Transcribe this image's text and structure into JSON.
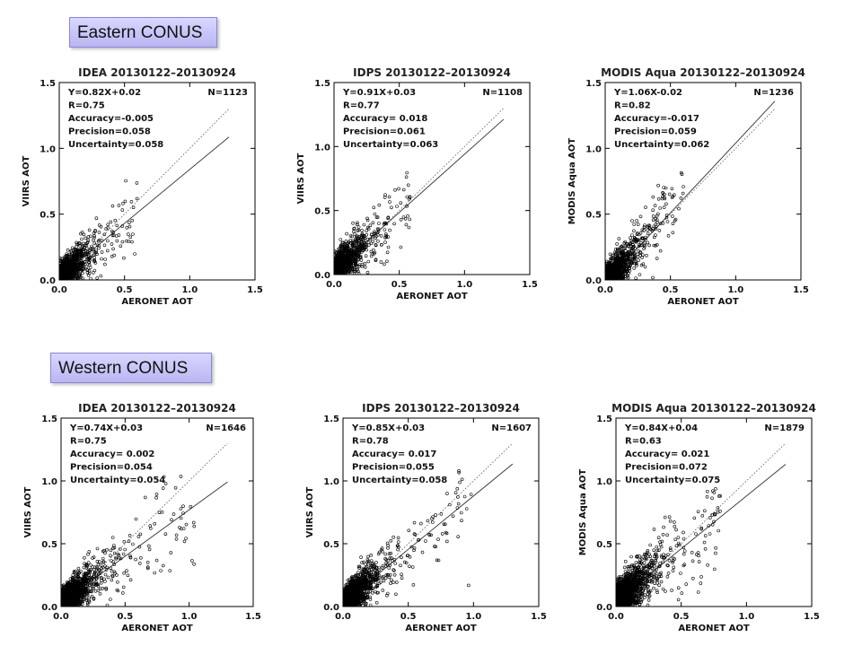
{
  "regions": {
    "east": "Eastern CONUS",
    "west": "Western CONUS"
  },
  "colors": {
    "points": "#000000",
    "axes": "#000000",
    "label_fill": "#c9c6f7",
    "label_border": "#8a86d6"
  },
  "chart_data": [
    {
      "type": "scatter",
      "title": "IDEA 20130122–20130924",
      "xlabel": "AERONET AOT",
      "ylabel": "VIIRS AOT",
      "xlim": [
        0,
        1.5
      ],
      "ylim": [
        0,
        1.5
      ],
      "xticks": [
        "0.0",
        "0.5",
        "1.0",
        "1.5"
      ],
      "yticks": [
        "0.0",
        "0.5",
        "1.0",
        "1.5"
      ],
      "grid": false,
      "stats": [
        "Y=0.82X+0.02",
        "R=0.75",
        "Accuracy=-0.005",
        "Precision=0.058",
        "Uncertainty=0.058"
      ],
      "n": "N=1123",
      "count": 1123,
      "fit": {
        "slope": 0.82,
        "intercept": 0.02,
        "x_end": 1.3
      },
      "one_to_one": {
        "x_end": 1.3
      },
      "spread": {
        "xmax": 0.6,
        "noise": 0.058,
        "seed": 11
      }
    },
    {
      "type": "scatter",
      "title": "IDPS 20130122–20130924",
      "xlabel": "AERONET AOT",
      "ylabel": "VIIRS AOT",
      "xlim": [
        0,
        1.5
      ],
      "ylim": [
        0,
        1.5
      ],
      "xticks": [
        "0.0",
        "0.5",
        "1.0",
        "1.5"
      ],
      "yticks": [
        "0.0",
        "0.5",
        "1.0",
        "1.5"
      ],
      "grid": false,
      "stats": [
        "Y=0.91X+0.03",
        "R=0.77",
        "Accuracy= 0.018",
        "Precision=0.061",
        "Uncertainty=0.063"
      ],
      "n": "N=1108",
      "count": 1108,
      "fit": {
        "slope": 0.91,
        "intercept": 0.03,
        "x_end": 1.3
      },
      "one_to_one": {
        "x_end": 1.3
      },
      "spread": {
        "xmax": 0.6,
        "noise": 0.063,
        "seed": 23
      }
    },
    {
      "type": "scatter",
      "title": "MODIS Aqua 20130122–20130924",
      "xlabel": "AERONET AOT",
      "ylabel": "MODIS Aqua AOT",
      "xlim": [
        0,
        1.5
      ],
      "ylim": [
        0,
        1.5
      ],
      "xticks": [
        "0.0",
        "0.5",
        "1.0",
        "1.5"
      ],
      "yticks": [
        "0.0",
        "0.5",
        "1.0",
        "1.5"
      ],
      "grid": false,
      "stats": [
        "Y=1.06X-0.02",
        "R=0.82",
        "Accuracy=-0.017",
        "Precision=0.059",
        "Uncertainty=0.062"
      ],
      "n": "N=1236",
      "count": 1236,
      "fit": {
        "slope": 1.06,
        "intercept": -0.02,
        "x_end": 1.3
      },
      "one_to_one": {
        "x_end": 1.3
      },
      "spread": {
        "xmax": 0.6,
        "noise": 0.062,
        "seed": 37
      }
    },
    {
      "type": "scatter",
      "title": "IDEA 20130122–20130924",
      "xlabel": "AERONET AOT",
      "ylabel": "VIIRS AOT",
      "xlim": [
        0,
        1.5
      ],
      "ylim": [
        0,
        1.5
      ],
      "xticks": [
        "0.0",
        "0.5",
        "1.0",
        "1.5"
      ],
      "yticks": [
        "0.0",
        "0.5",
        "1.0",
        "1.5"
      ],
      "grid": false,
      "stats": [
        "Y=0.74X+0.03",
        "R=0.75",
        "Accuracy= 0.002",
        "Precision=0.054",
        "Uncertainty=0.054"
      ],
      "n": "N=1646",
      "count": 1646,
      "fit": {
        "slope": 0.74,
        "intercept": 0.03,
        "x_end": 1.3
      },
      "one_to_one": {
        "x_end": 1.3
      },
      "spread": {
        "xmax": 1.05,
        "noise": 0.054,
        "seed": 41
      }
    },
    {
      "type": "scatter",
      "title": "IDPS 20130122–20130924",
      "xlabel": "AERONET AOT",
      "ylabel": "VIIRS AOT",
      "xlim": [
        0,
        1.5
      ],
      "ylim": [
        0,
        1.5
      ],
      "xticks": [
        "0.0",
        "0.5",
        "1.0",
        "1.5"
      ],
      "yticks": [
        "0.0",
        "0.5",
        "1.0",
        "1.5"
      ],
      "grid": false,
      "stats": [
        "Y=0.85X+0.03",
        "R=0.78",
        "Accuracy= 0.017",
        "Precision=0.055",
        "Uncertainty=0.058"
      ],
      "n": "N=1607",
      "count": 1607,
      "fit": {
        "slope": 0.85,
        "intercept": 0.03,
        "x_end": 1.3
      },
      "one_to_one": {
        "x_end": 1.3
      },
      "spread": {
        "xmax": 1.0,
        "noise": 0.058,
        "seed": 53
      }
    },
    {
      "type": "scatter",
      "title": "MODIS Aqua 20130122–20130924",
      "xlabel": "AERONET AOT",
      "ylabel": "MODIS Aqua AOT",
      "xlim": [
        0,
        1.5
      ],
      "ylim": [
        0,
        1.5
      ],
      "xticks": [
        "0.0",
        "0.5",
        "1.0",
        "1.5"
      ],
      "yticks": [
        "0.0",
        "0.5",
        "1.0",
        "1.5"
      ],
      "grid": false,
      "stats": [
        "Y=0.84X+0.04",
        "R=0.63",
        "Accuracy= 0.021",
        "Precision=0.072",
        "Uncertainty=0.075"
      ],
      "n": "N=1879",
      "count": 1879,
      "fit": {
        "slope": 0.84,
        "intercept": 0.04,
        "x_end": 1.3
      },
      "one_to_one": {
        "x_end": 1.3
      },
      "spread": {
        "xmax": 0.8,
        "noise": 0.075,
        "seed": 67
      }
    }
  ]
}
